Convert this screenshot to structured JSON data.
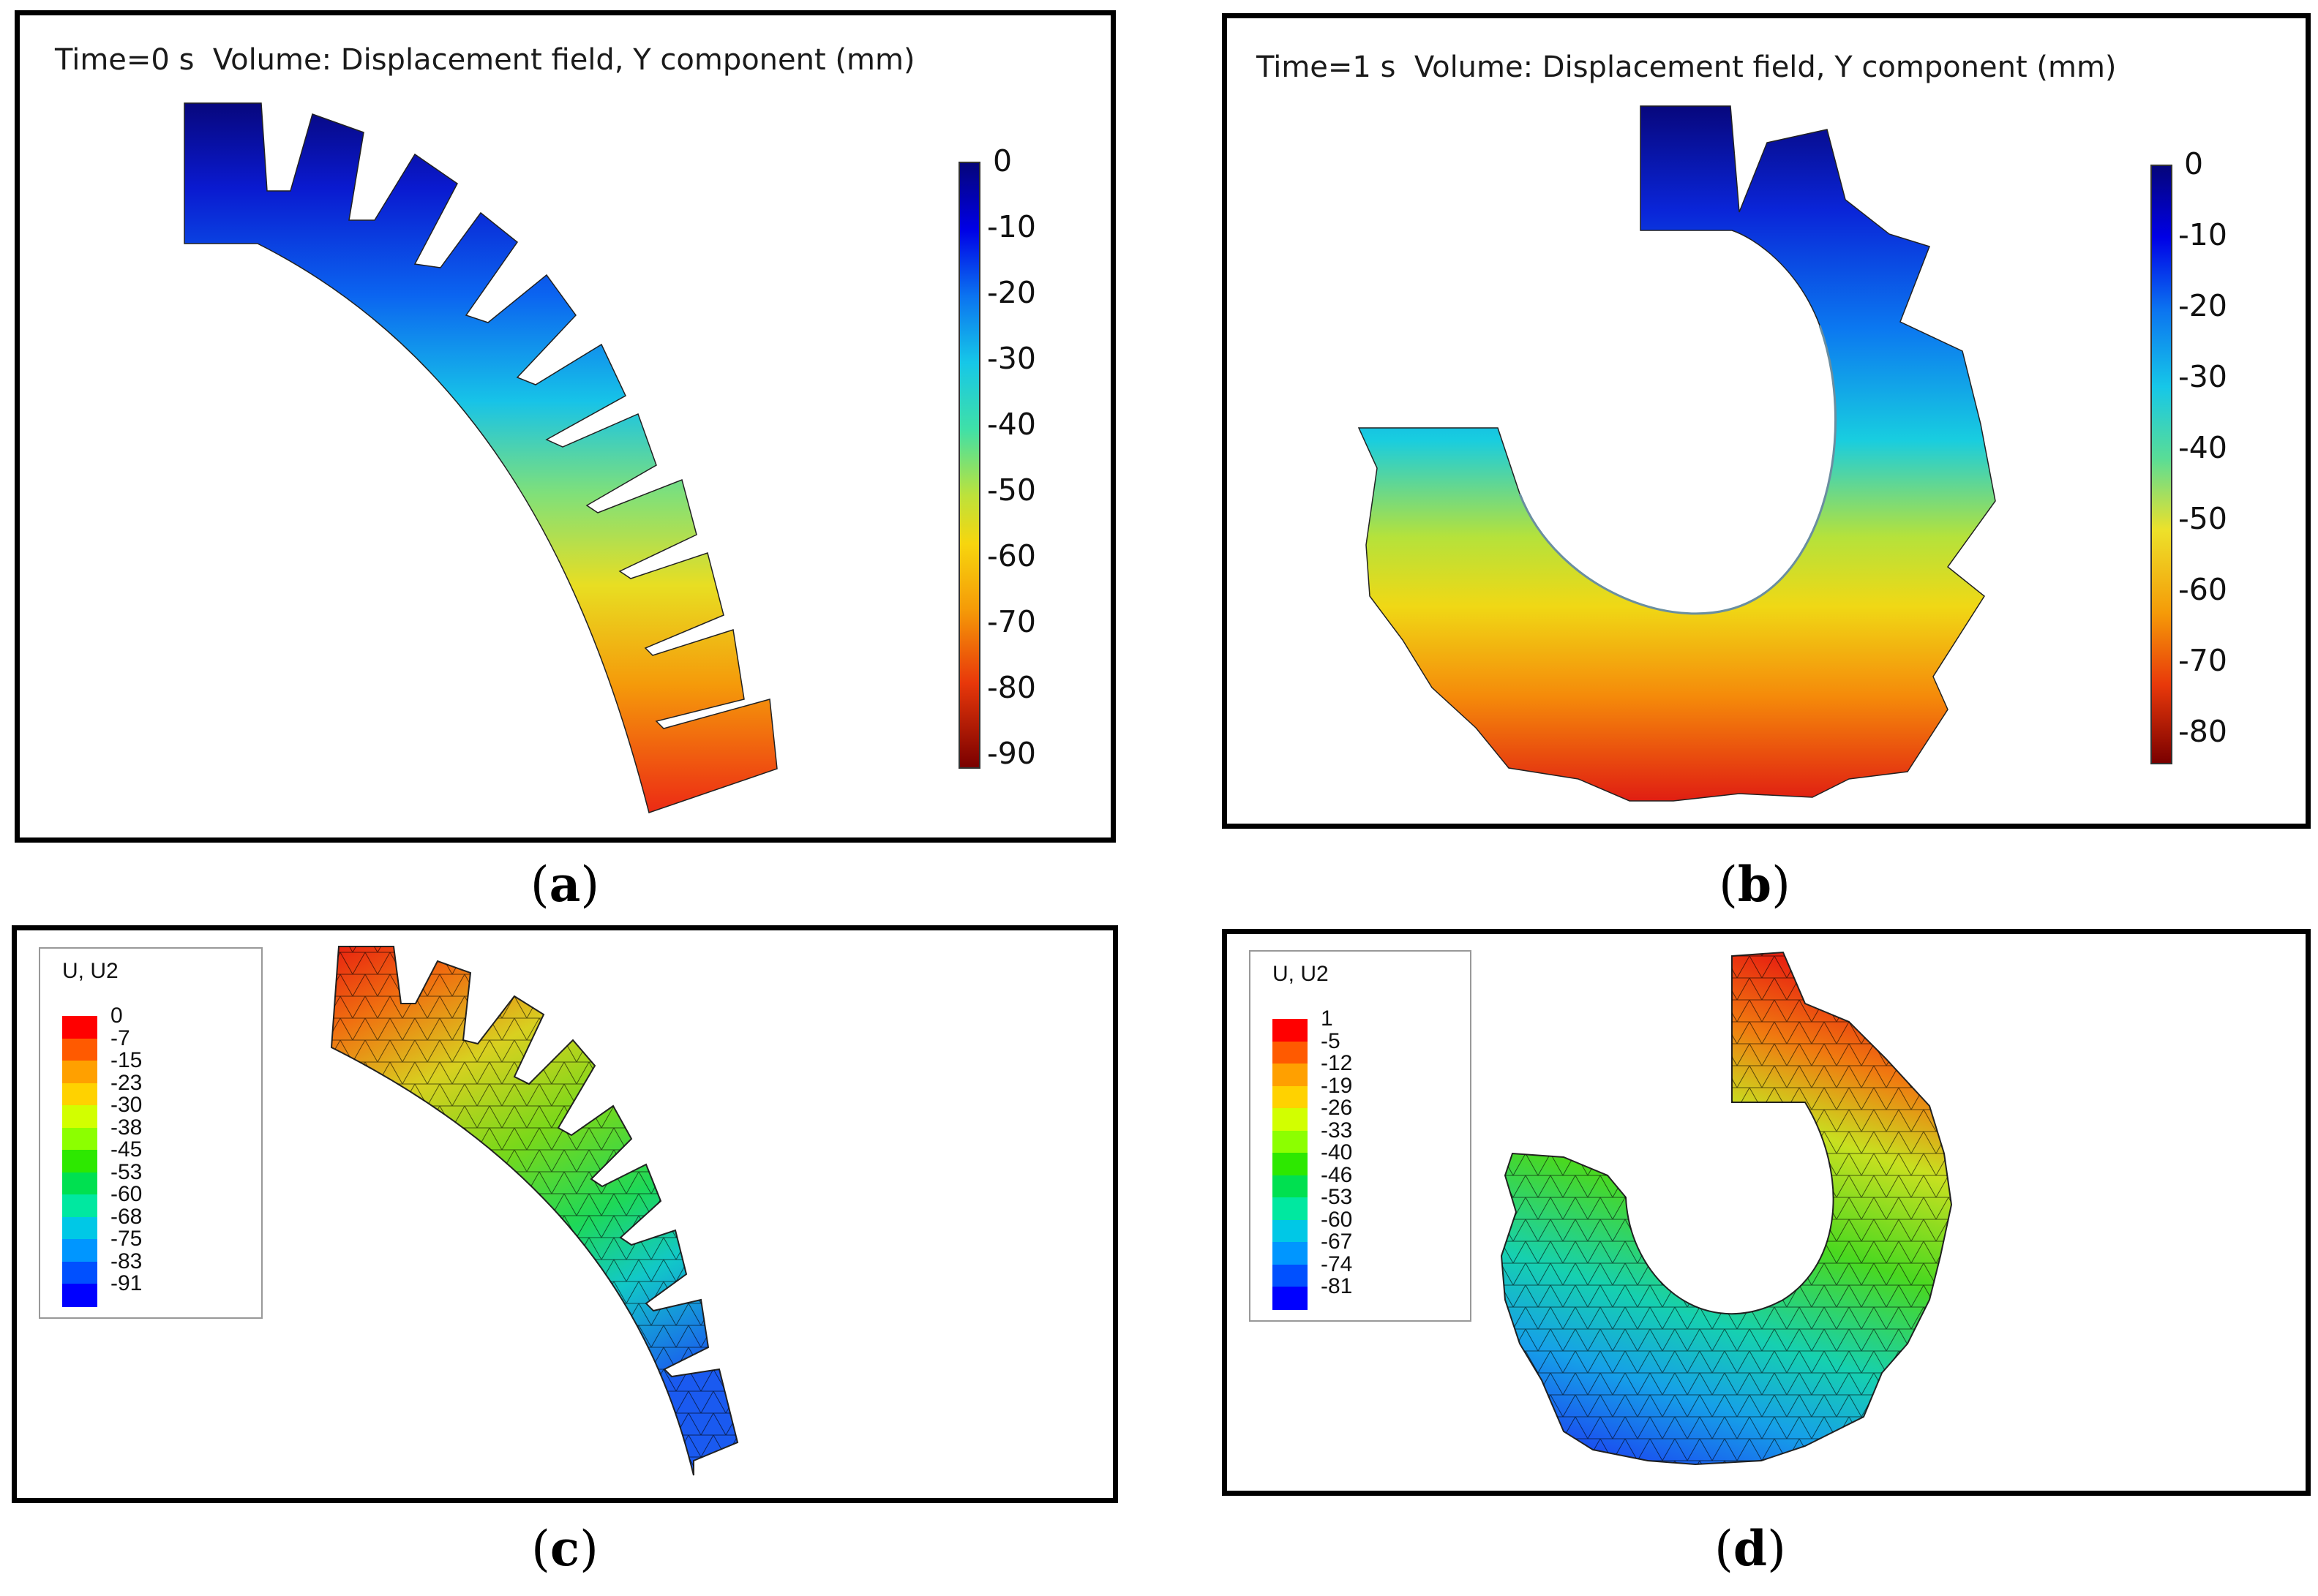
{
  "panel_a": {
    "header": "Time=0 s  Volume: Displacement field, Y component (mm)",
    "colorbar_labels": [
      "0",
      "-10",
      "-20",
      "-30",
      "-40",
      "-50",
      "-60",
      "-70",
      "-80",
      "-90"
    ],
    "caption_open": "(",
    "caption_letter": "a",
    "caption_close": ")"
  },
  "panel_b": {
    "header": "Time=1 s  Volume: Displacement field, Y component (mm)",
    "colorbar_labels": [
      "0",
      "-10",
      "-20",
      "-30",
      "-40",
      "-50",
      "-60",
      "-70",
      "-80"
    ],
    "caption_open": "(",
    "caption_letter": "b",
    "caption_close": ")"
  },
  "panel_c": {
    "legend_title": "U, U2",
    "legend_values": [
      "0",
      "-7",
      "-15",
      "-23",
      "-30",
      "-38",
      "-45",
      "-53",
      "-60",
      "-68",
      "-75",
      "-83",
      "-91"
    ],
    "caption_open": "(",
    "caption_letter": "c",
    "caption_close": ")"
  },
  "panel_d": {
    "legend_title": "U, U2",
    "legend_values": [
      "1",
      "-5",
      "-12",
      "-19",
      "-26",
      "-33",
      "-40",
      "-46",
      "-53",
      "-60",
      "-67",
      "-74",
      "-81"
    ],
    "caption_open": "(",
    "caption_letter": "d",
    "caption_close": ")"
  },
  "legend_colors": [
    "#ff0000",
    "#ff5a00",
    "#ffa000",
    "#ffd200",
    "#d2ff00",
    "#8cff00",
    "#2de800",
    "#00e050",
    "#00e8a0",
    "#00c8e6",
    "#0096ff",
    "#0050ff",
    "#0000ff"
  ],
  "colors": {
    "frame": "#000000",
    "dark_blue": "#05057a",
    "red": "#e8200a"
  }
}
